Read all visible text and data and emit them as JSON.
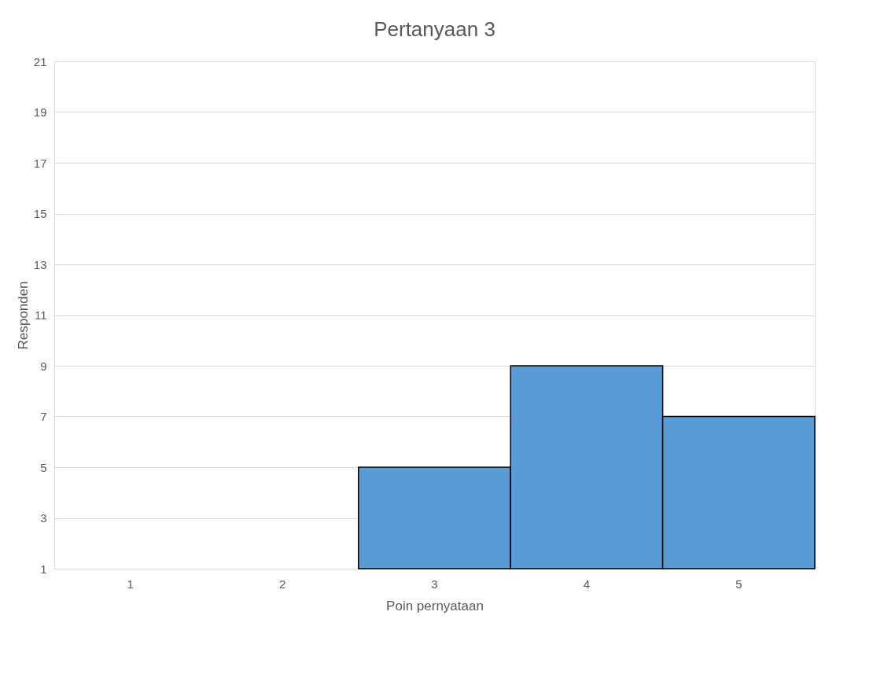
{
  "chart_data": {
    "type": "bar",
    "title": "Pertanyaan 3",
    "xlabel": "Poin pernyataan",
    "ylabel": "Responden",
    "categories": [
      "1",
      "2",
      "3",
      "4",
      "5"
    ],
    "series": [
      {
        "color": "#5b9bd5",
        "values": [
          null,
          null,
          5,
          9,
          7
        ]
      }
    ],
    "ylim": [
      1,
      21
    ],
    "yticks": [
      1,
      3,
      5,
      7,
      9,
      11,
      13,
      15,
      17,
      19,
      21
    ],
    "grid": "y",
    "legend": false
  }
}
